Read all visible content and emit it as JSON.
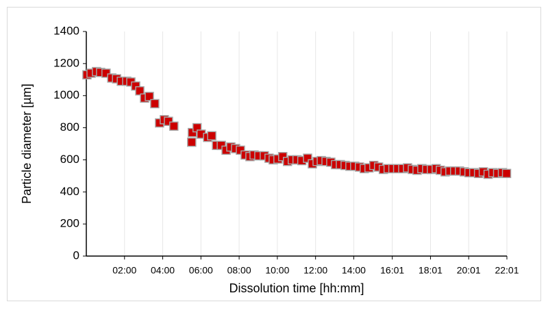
{
  "chart_data": {
    "type": "scatter",
    "x_label": "Dissolution time [hh:mm]",
    "y_label": "Particle diameter [µm]",
    "xlim": [
      0,
      1321
    ],
    "ylim": [
      0,
      1400
    ],
    "xticks": [
      {
        "value": 120,
        "label": "02:00"
      },
      {
        "value": 240,
        "label": "04:00"
      },
      {
        "value": 360,
        "label": "06:00"
      },
      {
        "value": 480,
        "label": "08:00"
      },
      {
        "value": 600,
        "label": "10:00"
      },
      {
        "value": 720,
        "label": "12:00"
      },
      {
        "value": 840,
        "label": "14:00"
      },
      {
        "value": 961,
        "label": "16:01"
      },
      {
        "value": 1081,
        "label": "18:01"
      },
      {
        "value": 1201,
        "label": "20:01"
      },
      {
        "value": 1321,
        "label": "22:01"
      }
    ],
    "yticks": [
      0,
      200,
      400,
      600,
      800,
      1000,
      1200,
      1400
    ],
    "grid": "x",
    "series": [
      {
        "color": "#cc0000",
        "x": [
          2,
          15,
          32,
          45,
          62,
          80,
          95,
          110,
          127,
          140,
          155,
          168,
          183,
          198,
          215,
          230,
          245,
          258,
          275,
          331,
          333,
          348,
          361,
          381,
          394,
          409,
          424,
          439,
          454,
          469,
          484,
          499,
          514,
          527,
          542,
          559,
          574,
          587,
          602,
          617,
          632,
          647,
          662,
          677,
          695,
          710,
          725,
          738,
          753,
          768,
          783,
          798,
          813,
          828,
          843,
          858,
          873,
          888,
          903,
          918,
          933,
          948,
          963,
          978,
          994,
          1009,
          1024,
          1039,
          1054,
          1069,
          1084,
          1099,
          1112,
          1127,
          1142,
          1157,
          1172,
          1187,
          1202,
          1217,
          1232,
          1247,
          1262,
          1277,
          1292,
          1307,
          1320
        ],
        "values": [
          1130,
          1140,
          1150,
          1145,
          1140,
          1110,
          1105,
          1090,
          1090,
          1085,
          1060,
          1030,
          985,
          995,
          950,
          830,
          850,
          840,
          810,
          710,
          770,
          800,
          760,
          740,
          750,
          690,
          690,
          660,
          680,
          670,
          660,
          630,
          620,
          630,
          625,
          625,
          610,
          600,
          605,
          620,
          590,
          600,
          600,
          595,
          610,
          575,
          590,
          595,
          590,
          585,
          570,
          570,
          565,
          560,
          560,
          555,
          545,
          550,
          565,
          555,
          540,
          545,
          545,
          545,
          545,
          550,
          540,
          535,
          545,
          540,
          540,
          545,
          535,
          525,
          530,
          530,
          530,
          525,
          520,
          520,
          515,
          525,
          510,
          520,
          515,
          520,
          515
        ]
      }
    ]
  }
}
